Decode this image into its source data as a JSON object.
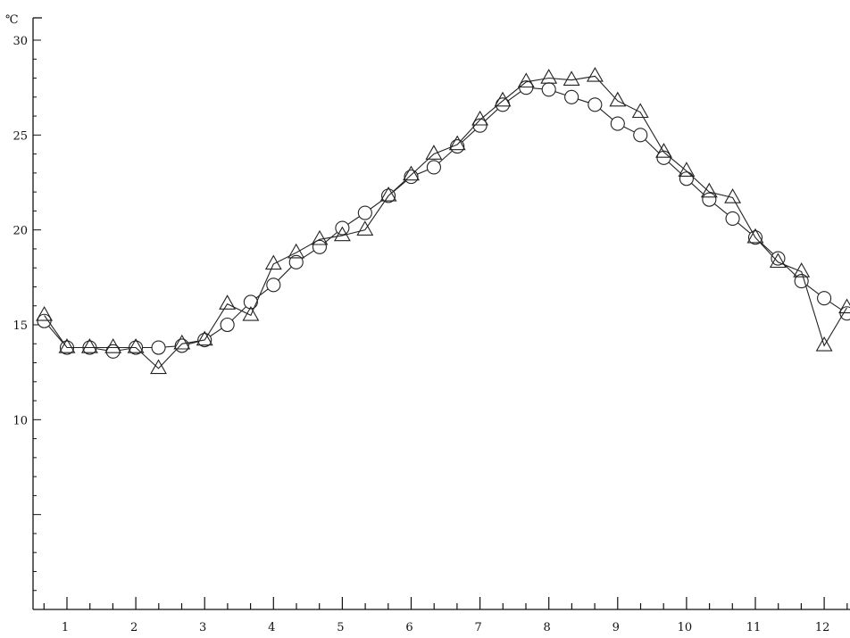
{
  "chart_data": {
    "type": "line",
    "title": "",
    "xlabel": "",
    "ylabel": "",
    "y_unit": "℃",
    "xlim": [
      0.5,
      12.5
    ],
    "ylim": [
      0,
      30.5
    ],
    "x_ticks": [
      "1",
      "2",
      "3",
      "4",
      "5",
      "6",
      "7",
      "8",
      "9",
      "10",
      "11",
      "12"
    ],
    "y_ticks": [
      "10",
      "15",
      "20",
      "25",
      "30"
    ],
    "grid": false,
    "legend": "none",
    "series": [
      {
        "marker": "circle",
        "x": [
          0.67,
          1.0,
          1.33,
          1.67,
          2.0,
          2.33,
          2.67,
          3.0,
          3.33,
          3.67,
          4.0,
          4.33,
          4.67,
          5.0,
          5.33,
          5.67,
          6.0,
          6.33,
          6.67,
          7.0,
          7.33,
          7.67,
          8.0,
          8.33,
          8.67,
          9.0,
          9.33,
          9.67,
          10.0,
          10.33,
          10.67,
          11.0,
          11.33,
          11.67,
          12.0,
          12.33
        ],
        "values": [
          15.2,
          13.8,
          13.8,
          13.6,
          13.8,
          13.8,
          13.9,
          14.2,
          15.0,
          16.2,
          17.1,
          18.3,
          19.1,
          20.1,
          20.9,
          21.8,
          22.8,
          23.3,
          24.4,
          25.5,
          26.6,
          27.5,
          27.4,
          27.0,
          26.6,
          25.6,
          25.0,
          23.8,
          22.7,
          21.6,
          20.6,
          19.6,
          18.5,
          17.3,
          16.4,
          15.6
        ]
      },
      {
        "marker": "triangle",
        "x": [
          0.67,
          1.0,
          1.33,
          1.67,
          2.0,
          2.33,
          2.67,
          3.0,
          3.33,
          3.67,
          4.0,
          4.33,
          4.67,
          5.0,
          5.33,
          5.67,
          6.0,
          6.33,
          6.67,
          7.0,
          7.33,
          7.67,
          8.0,
          8.33,
          8.67,
          9.0,
          9.33,
          9.67,
          10.0,
          10.33,
          10.67,
          11.0,
          11.33,
          11.67,
          12.0,
          12.33
        ],
        "values": [
          15.5,
          13.8,
          13.8,
          13.8,
          13.8,
          12.7,
          14.0,
          14.2,
          16.1,
          15.5,
          18.2,
          18.8,
          19.5,
          19.7,
          20.0,
          21.8,
          22.9,
          24.0,
          24.5,
          25.8,
          26.8,
          27.8,
          28.0,
          27.9,
          28.1,
          26.8,
          26.2,
          24.1,
          23.1,
          22.0,
          21.7,
          19.6,
          18.3,
          17.8,
          13.9,
          15.9
        ]
      }
    ]
  }
}
